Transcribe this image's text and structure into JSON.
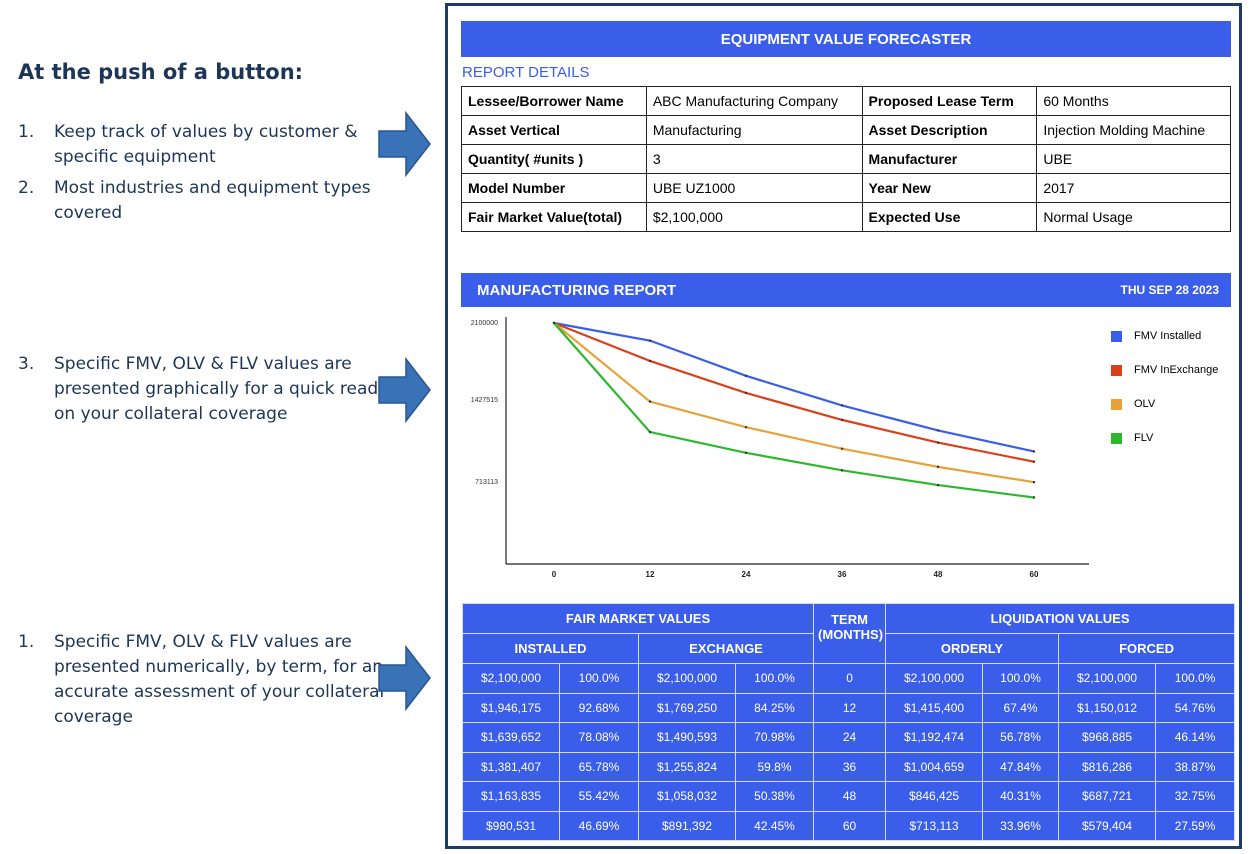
{
  "left": {
    "heading": "At the push of a button:",
    "bullets": [
      {
        "num": "1.",
        "text": "Keep track of values by customer & specific equipment"
      },
      {
        "num": "2.",
        "text": "Most industries and equipment types covered"
      },
      {
        "num": "3.",
        "text": "Specific FMV, OLV & FLV values are presented graphically for a quick read on your collateral coverage"
      },
      {
        "num": "1.",
        "text": "Specific FMV, OLV & FLV values are presented numerically, by term, for an accurate assessment of your collateral coverage"
      }
    ],
    "arrow_color": "#3a72b8"
  },
  "report": {
    "title": "EQUIPMENT VALUE FORECASTER",
    "details_label": "REPORT DETAILS",
    "details": [
      {
        "l1": "Lessee/Borrower Name",
        "v1": "ABC Manufacturing Company",
        "l2": "Proposed Lease Term",
        "v2": "60 Months"
      },
      {
        "l1": "Asset Vertical",
        "v1": "Manufacturing",
        "l2": "Asset Description",
        "v2": "Injection Molding Machine"
      },
      {
        "l1": "Quantity( #units )",
        "v1": "3",
        "l2": "Manufacturer",
        "v2": "UBE"
      },
      {
        "l1": "Model Number",
        "v1": "UBE UZ1000",
        "l2": "Year New",
        "v2": "2017"
      },
      {
        "l1": "Fair Market Value(total)",
        "v1": "$2,100,000",
        "l2": "Expected Use",
        "v2": "Normal Usage"
      }
    ],
    "mfg_title": "MANUFACTURING REPORT",
    "date": "THU SEP 28 2023",
    "accent": "#3a5eea"
  },
  "chart_data": {
    "type": "line",
    "title": "",
    "xlabel": "",
    "ylabel": "",
    "x": [
      0,
      12,
      24,
      36,
      48,
      60
    ],
    "yticks": [
      2100000,
      1427515,
      713113
    ],
    "ylim": [
      0,
      2100000
    ],
    "legend_position": "right",
    "series": [
      {
        "name": "FMV Installed",
        "color": "#3a5eea",
        "values": [
          2100000,
          1946175,
          1639652,
          1381407,
          1163835,
          980531
        ]
      },
      {
        "name": "FMV InExchange",
        "color": "#d9401c",
        "values": [
          2100000,
          1769250,
          1490593,
          1255824,
          1058032,
          891392
        ]
      },
      {
        "name": "OLV",
        "color": "#e8a23a",
        "values": [
          2100000,
          1415400,
          1192474,
          1004659,
          846425,
          713113
        ]
      },
      {
        "name": "FLV",
        "color": "#2cb82c",
        "values": [
          2100000,
          1150012,
          968885,
          816286,
          687721,
          579404
        ]
      }
    ]
  },
  "table": {
    "fair_market_values": "FAIR MARKET VALUES",
    "term": "TERM (MONTHS)",
    "liquidation_values": "LIQUIDATION VALUES",
    "installed": "INSTALLED",
    "exchange": "EXCHANGE",
    "orderly": "ORDERLY",
    "forced": "FORCED",
    "rows": [
      [
        "$2,100,000",
        "100.0%",
        "$2,100,000",
        "100.0%",
        "0",
        "$2,100,000",
        "100.0%",
        "$2,100,000",
        "100.0%"
      ],
      [
        "$1,946,175",
        "92.68%",
        "$1,769,250",
        "84.25%",
        "12",
        "$1,415,400",
        "67.4%",
        "$1,150,012",
        "54.76%"
      ],
      [
        "$1,639,652",
        "78.08%",
        "$1,490,593",
        "70.98%",
        "24",
        "$1,192,474",
        "56.78%",
        "$968,885",
        "46.14%"
      ],
      [
        "$1,381,407",
        "65.78%",
        "$1,255,824",
        "59.8%",
        "36",
        "$1,004,659",
        "47.84%",
        "$816,286",
        "38.87%"
      ],
      [
        "$1,163,835",
        "55.42%",
        "$1,058,032",
        "50.38%",
        "48",
        "$846,425",
        "40.31%",
        "$687,721",
        "32.75%"
      ],
      [
        "$980,531",
        "46.69%",
        "$891,392",
        "42.45%",
        "60",
        "$713,113",
        "33.96%",
        "$579,404",
        "27.59%"
      ]
    ]
  }
}
